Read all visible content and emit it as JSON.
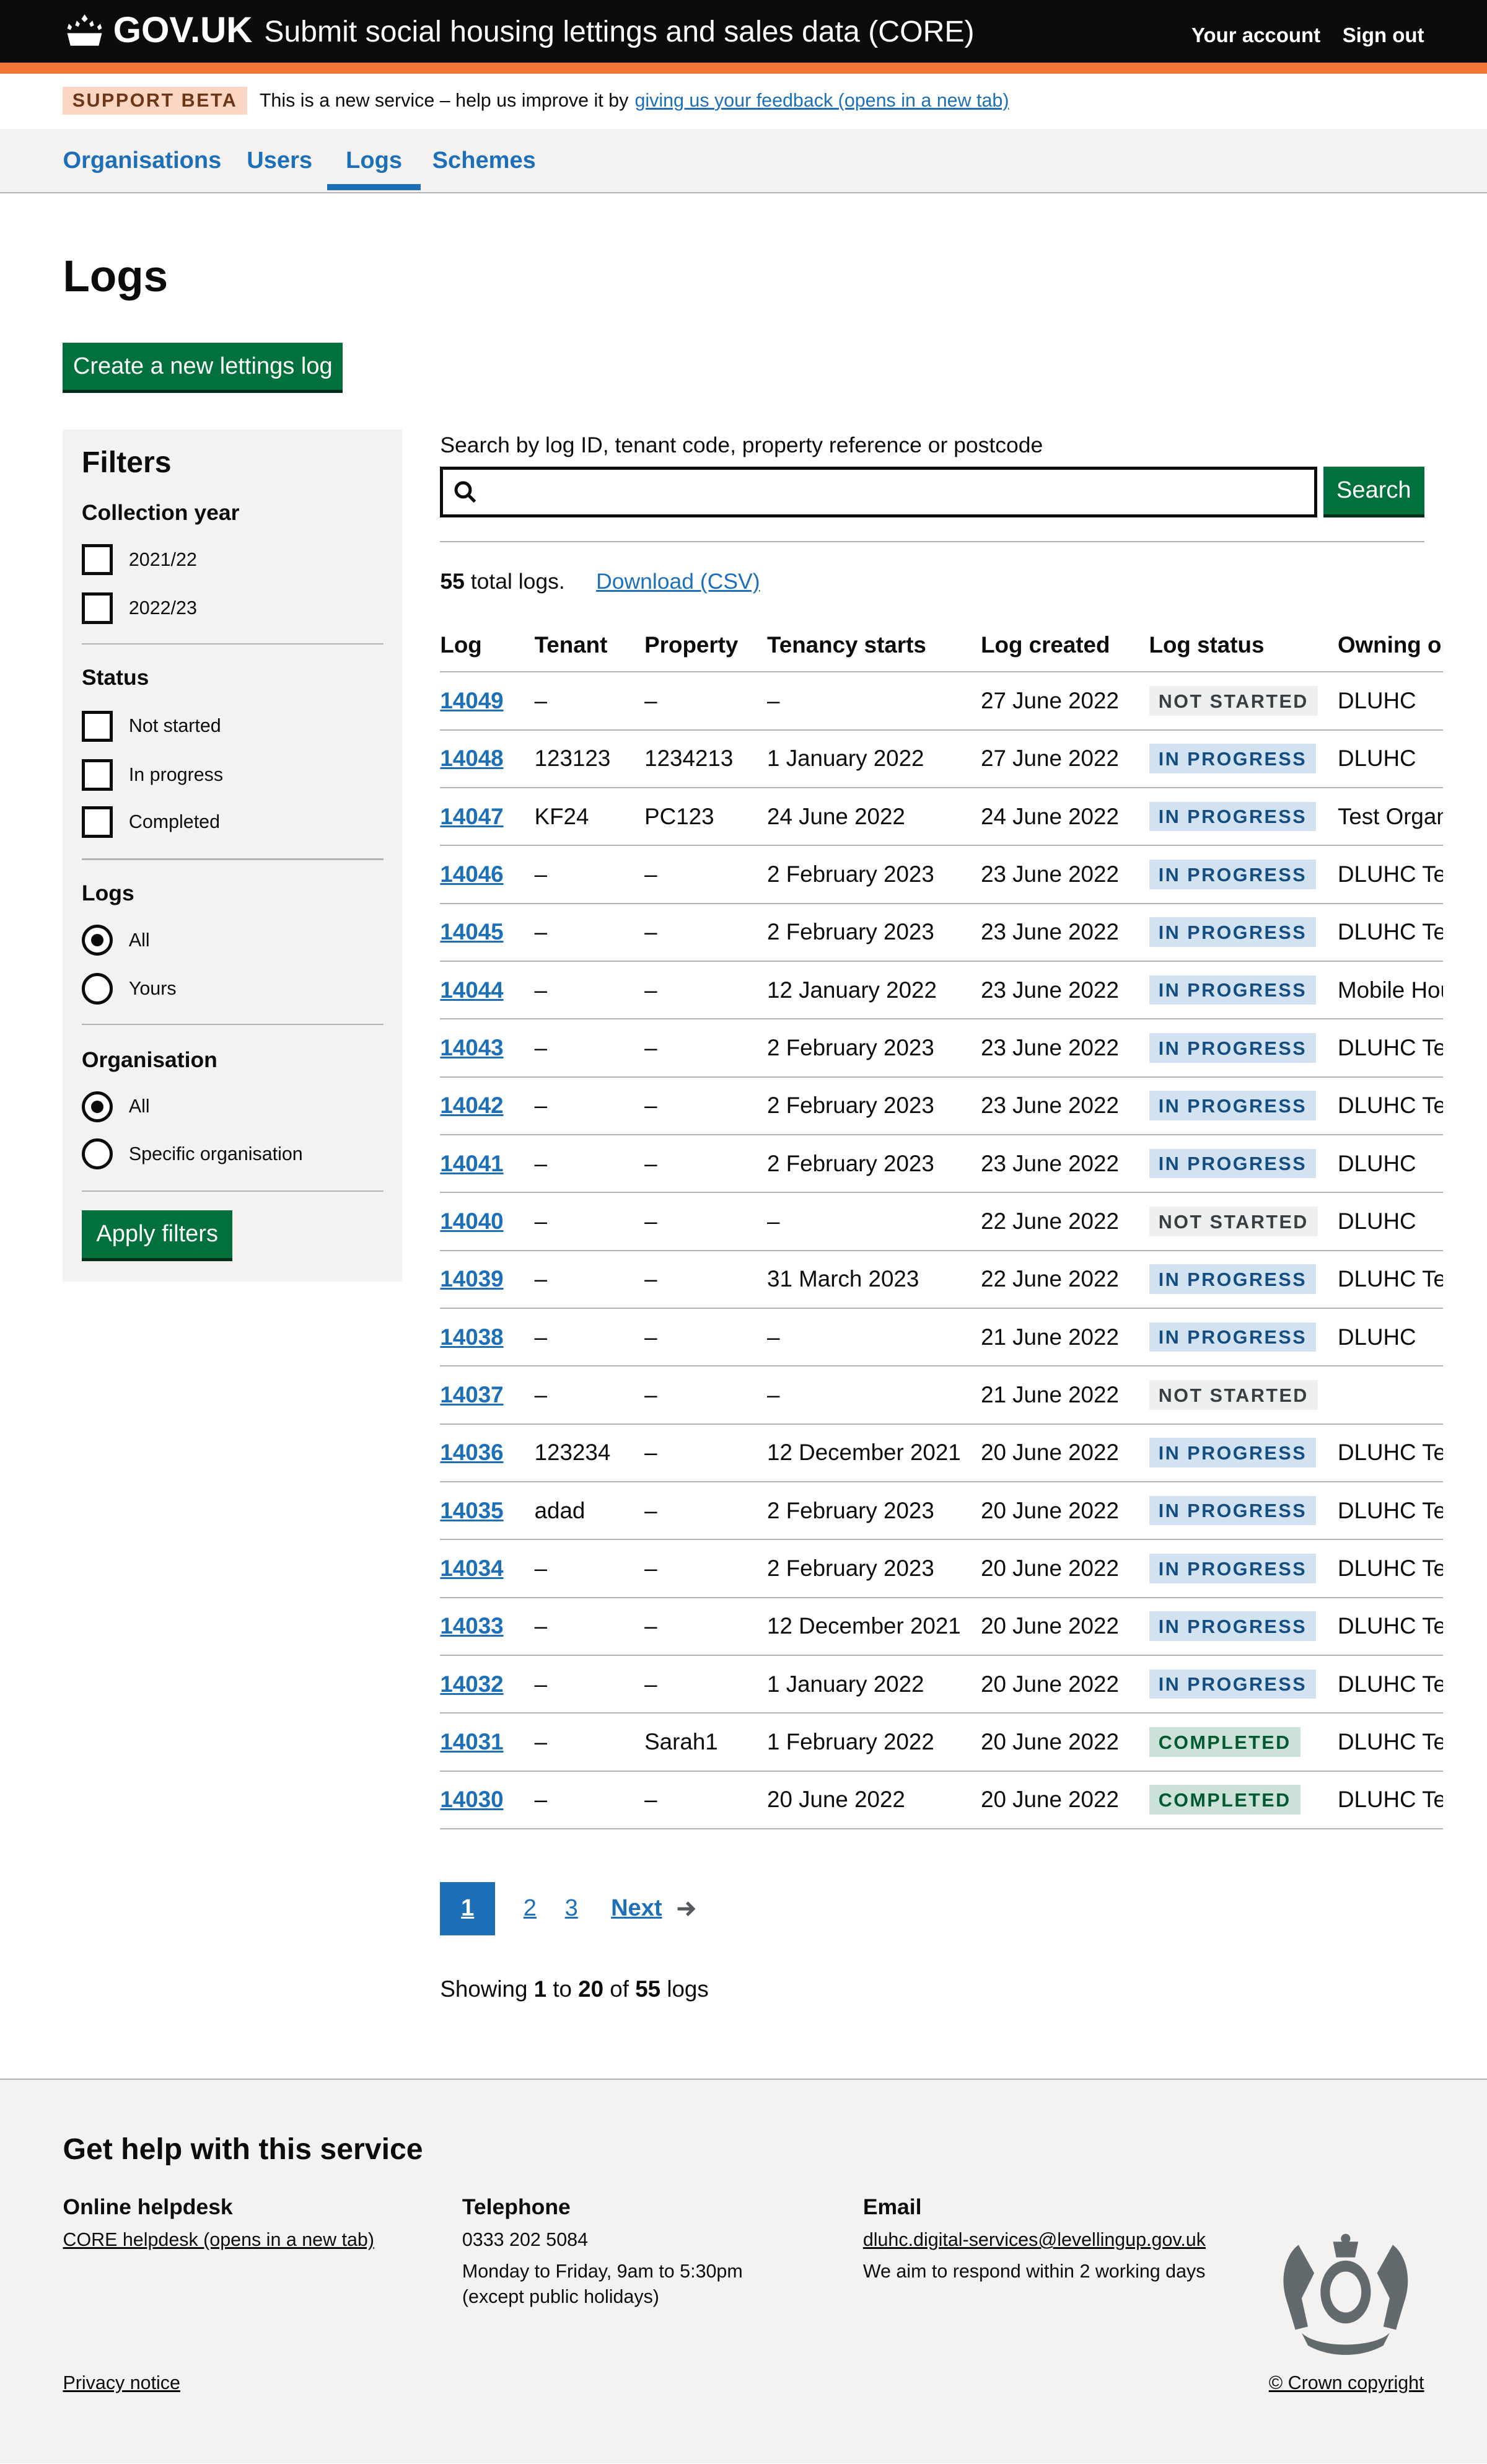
{
  "header": {
    "logo": "GOV.UK",
    "service_name": "Submit social housing lettings and sales data (CORE)",
    "links": [
      "Your account",
      "Sign out"
    ]
  },
  "banner": {
    "tag": "SUPPORT BETA",
    "text": "This is a new service – help us improve it by",
    "link": "giving us your feedback (opens in a new tab)"
  },
  "nav": {
    "items": [
      "Organisations",
      "Users",
      "Logs",
      "Schemes"
    ],
    "active": "Logs"
  },
  "page": {
    "title": "Logs",
    "create_button": "Create a new lettings log"
  },
  "filters": {
    "title": "Filters",
    "collection_year": {
      "label": "Collection year",
      "options": [
        "2021/22",
        "2022/23"
      ]
    },
    "status": {
      "label": "Status",
      "options": [
        "Not started",
        "In progress",
        "Completed"
      ]
    },
    "logs": {
      "label": "Logs",
      "options": [
        "All",
        "Yours"
      ],
      "selected": "All"
    },
    "organisation": {
      "label": "Organisation",
      "options": [
        "All",
        "Specific organisation"
      ],
      "selected": "All"
    },
    "apply": "Apply filters"
  },
  "search": {
    "label": "Search by log ID, tenant code, property reference or postcode",
    "value": "",
    "button": "Search"
  },
  "summary": {
    "count": "55",
    "text": "total logs.",
    "download": "Download (CSV)"
  },
  "table": {
    "headers": [
      "Log",
      "Tenant",
      "Property",
      "Tenancy starts",
      "Log created",
      "Log status",
      "Owning or"
    ],
    "rows": [
      [
        "14049",
        "–",
        "–",
        "–",
        "27 June 2022",
        "NOT STARTED",
        "DLUHC"
      ],
      [
        "14048",
        "123123",
        "1234213",
        "1 January 2022",
        "27 June 2022",
        "IN PROGRESS",
        "DLUHC"
      ],
      [
        "14047",
        "KF24",
        "PC123",
        "24 June 2022",
        "24 June 2022",
        "IN PROGRESS",
        "Test Organ"
      ],
      [
        "14046",
        "–",
        "–",
        "2 February 2023",
        "23 June 2022",
        "IN PROGRESS",
        "DLUHC Tes"
      ],
      [
        "14045",
        "–",
        "–",
        "2 February 2023",
        "23 June 2022",
        "IN PROGRESS",
        "DLUHC Tes"
      ],
      [
        "14044",
        "–",
        "–",
        "12 January 2022",
        "23 June 2022",
        "IN PROGRESS",
        "Mobile Hou"
      ],
      [
        "14043",
        "–",
        "–",
        "2 February 2023",
        "23 June 2022",
        "IN PROGRESS",
        "DLUHC Tes"
      ],
      [
        "14042",
        "–",
        "–",
        "2 February 2023",
        "23 June 2022",
        "IN PROGRESS",
        "DLUHC Tes"
      ],
      [
        "14041",
        "–",
        "–",
        "2 February 2023",
        "23 June 2022",
        "IN PROGRESS",
        "DLUHC"
      ],
      [
        "14040",
        "–",
        "–",
        "–",
        "22 June 2022",
        "NOT STARTED",
        "DLUHC"
      ],
      [
        "14039",
        "–",
        "–",
        "31 March 2023",
        "22 June 2022",
        "IN PROGRESS",
        "DLUHC Tes"
      ],
      [
        "14038",
        "–",
        "–",
        "–",
        "21 June 2022",
        "IN PROGRESS",
        "DLUHC"
      ],
      [
        "14037",
        "–",
        "–",
        "–",
        "21 June 2022",
        "NOT STARTED",
        ""
      ],
      [
        "14036",
        "123234",
        "–",
        "12 December 2021",
        "20 June 2022",
        "IN PROGRESS",
        "DLUHC Tes"
      ],
      [
        "14035",
        "adad",
        "–",
        "2 February 2023",
        "20 June 2022",
        "IN PROGRESS",
        "DLUHC Tes"
      ],
      [
        "14034",
        "–",
        "–",
        "2 February 2023",
        "20 June 2022",
        "IN PROGRESS",
        "DLUHC Tes"
      ],
      [
        "14033",
        "–",
        "–",
        "12 December 2021",
        "20 June 2022",
        "IN PROGRESS",
        "DLUHC Tes"
      ],
      [
        "14032",
        "–",
        "–",
        "1 January 2022",
        "20 June 2022",
        "IN PROGRESS",
        "DLUHC Tes"
      ],
      [
        "14031",
        "–",
        "Sarah1",
        "1 February 2022",
        "20 June 2022",
        "COMPLETED",
        "DLUHC Tes"
      ],
      [
        "14030",
        "–",
        "–",
        "20 June 2022",
        "20 June 2022",
        "COMPLETED",
        "DLUHC Tes"
      ]
    ]
  },
  "pagination": {
    "pages": [
      "1",
      "2",
      "3"
    ],
    "current": "1",
    "next": "Next"
  },
  "showing": {
    "prefix": "Showing",
    "from": "1",
    "to_word": "to",
    "to": "20",
    "of_word": "of",
    "total": "55",
    "suffix": "logs"
  },
  "footer": {
    "title": "Get help with this service",
    "helpdesk": {
      "heading": "Online helpdesk",
      "link": "CORE helpdesk (opens in a new tab)"
    },
    "telephone": {
      "heading": "Telephone",
      "number": "0333 202 5084",
      "hours": "Monday to Friday, 9am to 5:30pm",
      "note": "(except public holidays)"
    },
    "email": {
      "heading": "Email",
      "address": "dluhc.digital-services@levellingup.gov.uk",
      "note": "We aim to respond within 2 working days"
    },
    "privacy": "Privacy notice",
    "copyright": "© Crown copyright"
  },
  "colors": {
    "brand": "#0b0c0c",
    "accent": "#f47738",
    "link": "#1d70b8",
    "button": "#00703c"
  }
}
